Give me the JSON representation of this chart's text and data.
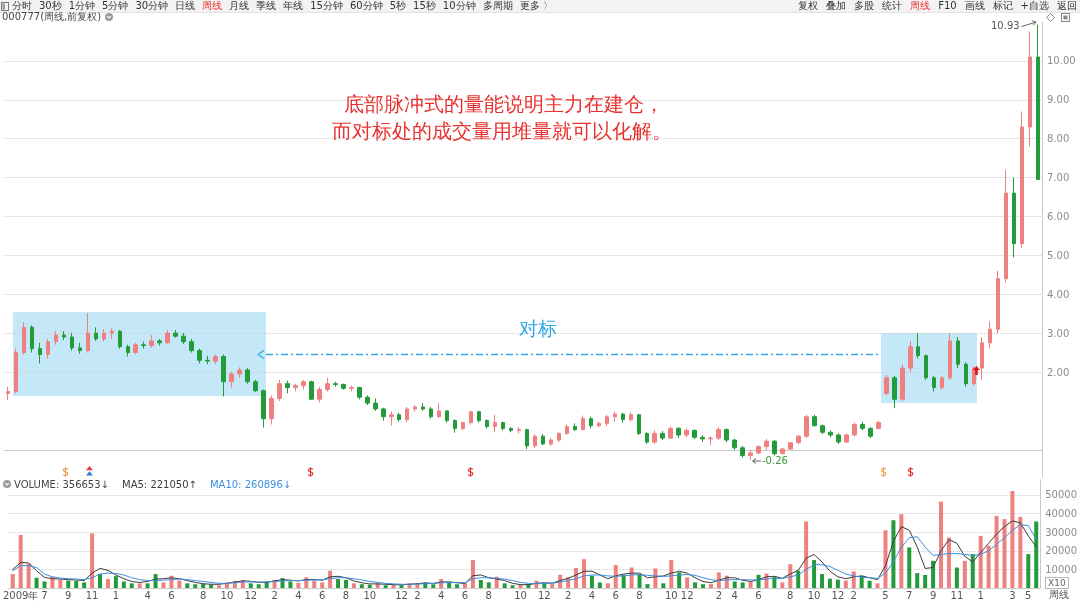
{
  "chart_data": [
    {
      "type": "candlestick",
      "title": "000777(周线,前复权)",
      "categories": [
        null,
        null,
        null,
        null,
        null,
        null,
        null,
        null,
        null,
        null,
        null,
        null,
        null,
        null,
        null,
        null,
        null,
        null,
        null,
        null,
        null,
        null,
        null,
        null,
        null,
        null,
        null,
        null,
        null,
        null,
        null,
        null,
        null,
        null,
        null,
        null,
        null,
        null,
        null,
        null,
        null,
        null,
        null,
        null,
        null,
        null,
        null,
        null,
        null,
        null,
        null,
        null,
        null,
        null,
        null,
        null,
        null,
        null,
        null,
        null,
        null,
        null,
        null,
        null,
        null,
        null,
        null,
        null,
        null,
        null,
        null,
        null,
        null,
        null,
        null,
        null,
        null,
        null,
        null,
        null,
        null,
        null,
        null,
        null,
        null,
        null,
        null,
        null,
        null,
        null,
        null,
        null,
        null,
        null,
        null,
        null,
        null,
        null,
        null,
        null,
        null,
        null,
        null,
        null,
        null,
        null,
        null,
        null,
        null,
        null,
        null,
        null,
        null,
        null,
        null,
        null,
        null,
        null,
        null,
        null,
        null,
        null,
        null,
        null,
        null,
        null,
        null,
        null,
        null,
        null
      ],
      "ohlc": [
        [
          1.45,
          1.62,
          1.28,
          1.5
        ],
        [
          1.5,
          2.6,
          1.45,
          2.5
        ],
        [
          2.5,
          3.28,
          2.45,
          3.15
        ],
        [
          3.15,
          3.2,
          2.5,
          2.6
        ],
        [
          2.6,
          2.75,
          2.22,
          2.45
        ],
        [
          2.45,
          2.85,
          2.35,
          2.78
        ],
        [
          2.78,
          3.05,
          2.7,
          2.95
        ],
        [
          2.95,
          3.05,
          2.82,
          2.9
        ],
        [
          2.9,
          3.0,
          2.55,
          2.62
        ],
        [
          2.62,
          2.75,
          2.47,
          2.55
        ],
        [
          2.55,
          3.51,
          2.5,
          3.0
        ],
        [
          3.0,
          3.15,
          2.8,
          2.85
        ],
        [
          2.85,
          3.1,
          2.78,
          3.0
        ],
        [
          3.0,
          3.12,
          2.85,
          3.05
        ],
        [
          3.05,
          3.08,
          2.6,
          2.65
        ],
        [
          2.65,
          2.7,
          2.4,
          2.5
        ],
        [
          2.5,
          2.75,
          2.45,
          2.7
        ],
        [
          2.7,
          2.78,
          2.6,
          2.68
        ],
        [
          2.68,
          2.95,
          2.62,
          2.8
        ],
        [
          2.8,
          2.85,
          2.68,
          2.75
        ],
        [
          2.75,
          3.08,
          2.72,
          3.0
        ],
        [
          3.0,
          3.08,
          2.88,
          2.92
        ],
        [
          2.92,
          3.0,
          2.72,
          2.78
        ],
        [
          2.78,
          2.85,
          2.5,
          2.55
        ],
        [
          2.55,
          2.6,
          2.22,
          2.3
        ],
        [
          2.3,
          2.42,
          2.2,
          2.28
        ],
        [
          2.28,
          2.45,
          2.2,
          2.4
        ],
        [
          2.4,
          2.45,
          1.37,
          1.75
        ],
        [
          1.75,
          2.0,
          1.6,
          1.95
        ],
        [
          1.95,
          2.12,
          1.85,
          2.05
        ],
        [
          2.05,
          2.1,
          1.7,
          1.75
        ],
        [
          1.75,
          1.8,
          1.48,
          1.52
        ],
        [
          1.52,
          1.55,
          0.57,
          0.8
        ],
        [
          0.8,
          1.4,
          0.65,
          1.32
        ],
        [
          1.32,
          1.8,
          1.25,
          1.7
        ],
        [
          1.7,
          1.78,
          1.45,
          1.6
        ],
        [
          1.6,
          1.7,
          1.5,
          1.65
        ],
        [
          1.65,
          1.8,
          1.55,
          1.75
        ],
        [
          1.75,
          1.78,
          1.28,
          1.3
        ],
        [
          1.3,
          1.62,
          1.22,
          1.55
        ],
        [
          1.55,
          1.85,
          1.5,
          1.7
        ],
        [
          1.7,
          1.75,
          1.62,
          1.68
        ],
        [
          1.68,
          1.7,
          1.55,
          1.58
        ],
        [
          1.58,
          1.65,
          1.5,
          1.6
        ],
        [
          1.6,
          1.62,
          1.3,
          1.35
        ],
        [
          1.35,
          1.4,
          1.15,
          1.2
        ],
        [
          1.2,
          1.32,
          1.0,
          1.05
        ],
        [
          1.05,
          1.08,
          0.75,
          0.85
        ],
        [
          0.85,
          0.98,
          0.62,
          0.9
        ],
        [
          0.9,
          0.95,
          0.72,
          0.78
        ],
        [
          0.78,
          1.1,
          0.7,
          1.05
        ],
        [
          1.05,
          1.15,
          0.98,
          1.1
        ],
        [
          1.1,
          1.2,
          1.0,
          1.05
        ],
        [
          1.05,
          1.1,
          0.8,
          0.85
        ],
        [
          0.85,
          1.2,
          0.82,
          1.0
        ],
        [
          1.0,
          1.02,
          0.7,
          0.75
        ],
        [
          0.75,
          0.78,
          0.44,
          0.55
        ],
        [
          0.55,
          0.72,
          0.5,
          0.7
        ],
        [
          0.7,
          1.0,
          0.65,
          0.98
        ],
        [
          0.98,
          1.0,
          0.7,
          0.75
        ],
        [
          0.75,
          0.78,
          0.55,
          0.6
        ],
        [
          0.6,
          0.9,
          0.45,
          0.7
        ],
        [
          0.7,
          0.72,
          0.5,
          0.55
        ],
        [
          0.55,
          0.58,
          0.45,
          0.5
        ],
        [
          0.5,
          0.58,
          0.42,
          0.52
        ],
        [
          0.52,
          0.54,
          0.02,
          0.1
        ],
        [
          0.1,
          0.4,
          0.05,
          0.35
        ],
        [
          0.35,
          0.4,
          0.12,
          0.15
        ],
        [
          0.15,
          0.3,
          0.1,
          0.25
        ],
        [
          0.25,
          0.45,
          0.2,
          0.42
        ],
        [
          0.42,
          0.65,
          0.38,
          0.6
        ],
        [
          0.6,
          0.68,
          0.48,
          0.52
        ],
        [
          0.52,
          0.88,
          0.5,
          0.8
        ],
        [
          0.8,
          0.85,
          0.55,
          0.62
        ],
        [
          0.62,
          0.72,
          0.58,
          0.68
        ],
        [
          0.68,
          0.9,
          0.6,
          0.85
        ],
        [
          0.85,
          0.98,
          0.72,
          0.92
        ],
        [
          0.92,
          0.95,
          0.7,
          0.78
        ],
        [
          0.78,
          0.96,
          0.72,
          0.9
        ],
        [
          0.9,
          0.92,
          0.38,
          0.42
        ],
        [
          0.42,
          0.45,
          0.15,
          0.2
        ],
        [
          0.2,
          0.5,
          0.15,
          0.42
        ],
        [
          0.42,
          0.48,
          0.25,
          0.3
        ],
        [
          0.3,
          0.6,
          0.28,
          0.55
        ],
        [
          0.55,
          0.58,
          0.3,
          0.38
        ],
        [
          0.38,
          0.55,
          0.32,
          0.5
        ],
        [
          0.5,
          0.52,
          0.28,
          0.32
        ],
        [
          0.32,
          0.38,
          0.2,
          0.28
        ],
        [
          0.28,
          0.35,
          0.12,
          0.3
        ],
        [
          0.3,
          0.58,
          0.25,
          0.52
        ],
        [
          0.52,
          0.55,
          0.2,
          0.25
        ],
        [
          0.25,
          0.28,
          0.0,
          0.05
        ],
        [
          0.05,
          0.1,
          -0.2,
          -0.15
        ],
        [
          -0.15,
          0.0,
          -0.26,
          -0.08
        ],
        [
          -0.08,
          0.12,
          -0.12,
          0.08
        ],
        [
          0.08,
          0.28,
          0.0,
          0.22
        ],
        [
          0.22,
          0.25,
          -0.15,
          -0.1
        ],
        [
          -0.1,
          0.05,
          -0.12,
          0.02
        ],
        [
          0.02,
          0.2,
          0.0,
          0.18
        ],
        [
          0.18,
          0.38,
          0.15,
          0.35
        ],
        [
          0.35,
          0.9,
          0.3,
          0.85
        ],
        [
          0.85,
          0.9,
          0.6,
          0.62
        ],
        [
          0.62,
          0.65,
          0.4,
          0.45
        ],
        [
          0.45,
          0.5,
          0.32,
          0.38
        ],
        [
          0.38,
          0.42,
          0.15,
          0.2
        ],
        [
          0.2,
          0.42,
          0.18,
          0.38
        ],
        [
          0.38,
          0.7,
          0.35,
          0.65
        ],
        [
          0.65,
          0.72,
          0.5,
          0.55
        ],
        [
          0.55,
          0.58,
          0.3,
          0.35
        ],
        [
          0.55,
          0.75,
          0.52,
          0.7
        ],
        [
          1.45,
          1.92,
          1.4,
          1.85
        ],
        [
          1.85,
          1.9,
          1.07,
          1.3
        ],
        [
          1.3,
          2.2,
          1.25,
          2.1
        ],
        [
          2.1,
          2.8,
          2.0,
          2.65
        ],
        [
          2.65,
          3.0,
          2.35,
          2.42
        ],
        [
          2.42,
          2.45,
          1.8,
          1.85
        ],
        [
          1.85,
          1.9,
          1.5,
          1.6
        ],
        [
          1.6,
          1.9,
          1.55,
          1.85
        ],
        [
          1.85,
          3.0,
          1.8,
          2.8
        ],
        [
          2.8,
          2.9,
          2.1,
          2.2
        ],
        [
          2.2,
          2.25,
          1.62,
          1.7
        ],
        [
          1.7,
          2.15,
          1.65,
          2.1
        ],
        [
          2.1,
          2.9,
          1.8,
          2.75
        ],
        [
          2.75,
          3.3,
          2.6,
          3.1
        ],
        [
          3.1,
          4.6,
          3.0,
          4.4
        ],
        [
          4.4,
          7.2,
          4.3,
          6.6
        ],
        [
          6.6,
          7.0,
          4.95,
          5.3
        ],
        [
          5.3,
          8.7,
          5.2,
          8.3
        ],
        [
          8.3,
          10.75,
          7.8,
          10.1
        ],
        [
          10.1,
          10.93,
          6.93,
          6.95
        ]
      ],
      "colors": [
        "#ef8080",
        "#ef8080",
        "#ef8080",
        "#239b3a",
        "#239b3a",
        "#ef8080",
        "#ef8080",
        "#239b3a",
        "#239b3a",
        "#239b3a",
        "#ef8080",
        "#239b3a",
        "#ef8080",
        "#ef8080",
        "#239b3a",
        "#239b3a",
        "#ef8080",
        "#239b3a",
        "#ef8080",
        "#239b3a",
        "#ef8080",
        "#239b3a",
        "#239b3a",
        "#239b3a",
        "#239b3a",
        "#239b3a",
        "#ef8080",
        "#239b3a",
        "#ef8080",
        "#ef8080",
        "#239b3a",
        "#239b3a",
        "#239b3a",
        "#ef8080",
        "#ef8080",
        "#239b3a",
        "#ef8080",
        "#ef8080",
        "#239b3a",
        "#ef8080",
        "#ef8080",
        "#239b3a",
        "#239b3a",
        "#ef8080",
        "#239b3a",
        "#239b3a",
        "#239b3a",
        "#239b3a",
        "#ef8080",
        "#239b3a",
        "#ef8080",
        "#ef8080",
        "#239b3a",
        "#239b3a",
        "#ef8080",
        "#239b3a",
        "#239b3a",
        "#ef8080",
        "#ef8080",
        "#239b3a",
        "#239b3a",
        "#ef8080",
        "#239b3a",
        "#239b3a",
        "#ef8080",
        "#239b3a",
        "#ef8080",
        "#239b3a",
        "#ef8080",
        "#ef8080",
        "#ef8080",
        "#239b3a",
        "#ef8080",
        "#239b3a",
        "#ef8080",
        "#ef8080",
        "#ef8080",
        "#239b3a",
        "#ef8080",
        "#239b3a",
        "#239b3a",
        "#ef8080",
        "#239b3a",
        "#ef8080",
        "#239b3a",
        "#ef8080",
        "#239b3a",
        "#239b3a",
        "#ef8080",
        "#ef8080",
        "#239b3a",
        "#239b3a",
        "#239b3a",
        "#ef8080",
        "#ef8080",
        "#ef8080",
        "#239b3a",
        "#ef8080",
        "#ef8080",
        "#ef8080",
        "#ef8080",
        "#239b3a",
        "#239b3a",
        "#239b3a",
        "#239b3a",
        "#ef8080",
        "#ef8080",
        "#239b3a",
        "#239b3a",
        "#ef8080",
        "#ef8080",
        "#239b3a",
        "#ef8080",
        "#ef8080",
        "#239b3a",
        "#239b3a",
        "#239b3a",
        "#ef8080",
        "#ef8080",
        "#239b3a",
        "#239b3a",
        "#ef8080",
        "#ef8080",
        "#ef8080",
        "#ef8080",
        "#ef8080",
        "#239b3a",
        "#ef8080",
        "#ef8080",
        "#239b3a"
      ],
      "ylim": [
        -0.7,
        11.0
      ],
      "yticks": [
        {
          "value": 2,
          "label": "2.00"
        },
        {
          "value": 3,
          "label": "3.00"
        },
        {
          "value": 4,
          "label": "4.00"
        },
        {
          "value": 5,
          "label": "5.00"
        },
        {
          "value": 6,
          "label": "6.00"
        },
        {
          "value": 7,
          "label": "7.00"
        },
        {
          "value": 8,
          "label": "8.00"
        },
        {
          "value": 9,
          "label": "9.00"
        },
        {
          "value": 10,
          "label": "10.00"
        }
      ],
      "grid": "y",
      "tick_labels": "y",
      "annotations": [
        "分时",
        "30秒",
        "1分钟",
        "5分钟",
        "30分钟",
        "日线",
        "周线",
        "月线",
        "季线",
        "年线",
        "15分钟",
        "60分钟",
        "5秒",
        "15秒",
        "10分钟",
        "多周期",
        "更多 〉",
        "复权",
        "叠加",
        "多股",
        "统计",
        "周线",
        "F10",
        "画线",
        "标记",
        "+自选",
        "返回",
        "底部脉冲式的量能说明主力在建仓，",
        "而对标处的成交量用堆量就可以化解。",
        "对标",
        "10.93",
        "-0.26"
      ]
    },
    {
      "type": "bar",
      "categories": [
        null,
        "2009年",
        null,
        null,
        "7",
        null,
        null,
        "9",
        null,
        null,
        "11",
        null,
        null,
        "1",
        null,
        null,
        null,
        "4",
        null,
        null,
        "6",
        null,
        null,
        null,
        "8",
        null,
        null,
        "10",
        null,
        null,
        "12",
        null,
        null,
        "2",
        null,
        null,
        "4",
        null,
        null,
        "6",
        null,
        null,
        "8",
        null,
        null,
        "10",
        null,
        null,
        null,
        "12",
        null,
        "2",
        null,
        null,
        "4",
        null,
        null,
        "6",
        null,
        null,
        "8",
        null,
        null,
        null,
        "10",
        null,
        null,
        "12",
        null,
        null,
        "2",
        null,
        null,
        "4",
        null,
        null,
        "6",
        null,
        null,
        "8",
        null,
        null,
        null,
        "10",
        null,
        "12",
        null,
        null,
        null,
        "2",
        null,
        "4",
        null,
        null,
        "6",
        null,
        null,
        null,
        "8",
        null,
        null,
        "10",
        null,
        null,
        "12",
        null,
        "2",
        null,
        null,
        null,
        "5",
        null,
        null,
        "7",
        null,
        null,
        "9",
        null,
        null,
        "11",
        null,
        null,
        "1",
        null,
        null,
        null,
        "3",
        null,
        "5",
        null
      ],
      "series": [
        {
          "values": [
            7500,
            28500,
            13000,
            5500,
            3500,
            6000,
            4500,
            4000,
            3800,
            3000,
            29300,
            7500,
            4800,
            6400,
            3500,
            2500,
            2500,
            2500,
            7500,
            3000,
            6600,
            4000,
            2500,
            2000,
            2200,
            1800,
            1500,
            3000,
            3900,
            4300,
            2500,
            2000,
            3500,
            4300,
            5300,
            3500,
            2800,
            5700,
            4000,
            3000,
            9300,
            4800,
            4300,
            2500,
            2000,
            1800,
            2500,
            1500,
            1800,
            1500,
            2500,
            2500,
            3000,
            2000,
            4800,
            2900,
            2000,
            2500,
            15000,
            4300,
            3000,
            6100,
            2500,
            1500,
            1800,
            2000,
            3900,
            2500,
            2100,
            7100,
            5700,
            10700,
            15500,
            6600,
            3000,
            2500,
            12300,
            7100,
            11000,
            7500,
            2100,
            10500,
            2500,
            15000,
            8400,
            5700,
            3000,
            2000,
            2100,
            8400,
            6600,
            3500,
            3000,
            3200,
            7100,
            7800,
            6100,
            3000,
            12800,
            9300,
            35700,
            15000,
            7500,
            5000,
            4500,
            4000,
            8900,
            6600,
            3900,
            2500,
            31000,
            36400,
            39600,
            21800,
            8000,
            7000,
            14600,
            46400,
            27100,
            11000,
            14600,
            18200,
            28000,
            22700,
            38700,
            37000,
            52100,
            38200,
            18200,
            35700
          ],
          "colors": [
            "#ef8080",
            "#ef8080",
            "#ef8080",
            "#239b3a",
            "#239b3a",
            "#ef8080",
            "#ef8080",
            "#239b3a",
            "#239b3a",
            "#239b3a",
            "#ef8080",
            "#239b3a",
            "#ef8080",
            "#239b3a",
            "#239b3a",
            "#239b3a",
            "#ef8080",
            "#239b3a",
            "#239b3a",
            "#ef8080",
            "#ef8080",
            "#ef8080",
            "#239b3a",
            "#239b3a",
            "#239b3a",
            "#239b3a",
            "#ef8080",
            "#ef8080",
            "#ef8080",
            "#ef8080",
            "#239b3a",
            "#239b3a",
            "#239b3a",
            "#ef8080",
            "#239b3a",
            "#239b3a",
            "#ef8080",
            "#ef8080",
            "#ef8080",
            "#ef8080",
            "#ef8080",
            "#239b3a",
            "#239b3a",
            "#ef8080",
            "#239b3a",
            "#239b3a",
            "#ef8080",
            "#239b3a",
            "#ef8080",
            "#239b3a",
            "#ef8080",
            "#ef8080",
            "#239b3a",
            "#239b3a",
            "#ef8080",
            "#239b3a",
            "#239b3a",
            "#ef8080",
            "#ef8080",
            "#239b3a",
            "#239b3a",
            "#ef8080",
            "#239b3a",
            "#239b3a",
            "#ef8080",
            "#239b3a",
            "#ef8080",
            "#239b3a",
            "#ef8080",
            "#ef8080",
            "#ef8080",
            "#ef8080",
            "#ef8080",
            "#239b3a",
            "#239b3a",
            "#ef8080",
            "#ef8080",
            "#239b3a",
            "#ef8080",
            "#239b3a",
            "#239b3a",
            "#ef8080",
            "#239b3a",
            "#ef8080",
            "#239b3a",
            "#ef8080",
            "#239b3a",
            "#239b3a",
            "#ef8080",
            "#ef8080",
            "#ef8080",
            "#239b3a",
            "#239b3a",
            "#ef8080",
            "#239b3a",
            "#ef8080",
            "#239b3a",
            "#ef8080",
            "#ef8080",
            "#239b3a",
            "#ef8080",
            "#239b3a",
            "#239b3a",
            "#239b3a",
            "#239b3a",
            "#ef8080",
            "#ef8080",
            "#239b3a",
            "#239b3a",
            "#ef8080",
            "#ef8080",
            "#239b3a",
            "#ef8080",
            "#239b3a",
            "#239b3a",
            "#239b3a",
            "#239b3a",
            "#ef8080",
            "#ef8080",
            "#239b3a",
            "#ef8080",
            "#239b3a",
            "#ef8080",
            "#ef8080",
            "#ef8080",
            "#ef8080",
            "#ef8080",
            "#ef8080",
            "#239b3a",
            "#239b3a"
          ]
        },
        {
          "type": "line",
          "name": "MA5: 221050↑",
          "color": "#3c3c3c",
          "values": [
            10000,
            13700,
            13500,
            9300,
            5700,
            5000,
            4800,
            4500,
            4300,
            4000,
            8000,
            10500,
            9500,
            7000,
            5000,
            3500,
            3000,
            3500,
            4800,
            5000,
            5500,
            5000,
            4000,
            3000,
            2300,
            2000,
            2000,
            2500,
            3200,
            3800,
            3600,
            3000,
            3000,
            3800,
            4500,
            4200,
            3800,
            4500,
            4600,
            4200,
            6000,
            6300,
            5500,
            3800,
            2800,
            2200,
            2200,
            2000,
            1800,
            1700,
            2000,
            2300,
            2700,
            2500,
            3200,
            3300,
            2800,
            2400,
            6600,
            7000,
            5500,
            4800,
            4000,
            2500,
            1800,
            1800,
            2500,
            2800,
            2600,
            4000,
            5200,
            7000,
            9000,
            9000,
            7000,
            5000,
            6500,
            7500,
            8000,
            8000,
            5500,
            6000,
            6500,
            8000,
            9000,
            8000,
            5500,
            3500,
            2800,
            4200,
            5500,
            5500,
            4200,
            3500,
            4500,
            6000,
            6300,
            5200,
            7500,
            9500,
            16000,
            18000,
            14000,
            9000,
            6000,
            5000,
            6000,
            6500,
            5500,
            4500,
            12000,
            25000,
            33000,
            31000,
            22000,
            10500,
            11000,
            20000,
            26000,
            24000,
            17000,
            14000,
            19000,
            24000,
            29000,
            33000,
            36000,
            35000,
            28000,
            22100
          ]
        },
        {
          "type": "line",
          "name": "MA10: 260896↓",
          "color": "#3b8fe0",
          "values": [
            9300,
            12000,
            12000,
            11000,
            7500,
            6000,
            5300,
            5000,
            4800,
            4500,
            5500,
            7500,
            8000,
            7800,
            7000,
            5500,
            4500,
            4000,
            4000,
            4200,
            4500,
            4800,
            4500,
            4000,
            3500,
            3000,
            2500,
            2500,
            2800,
            3200,
            3300,
            3200,
            3200,
            3500,
            3800,
            4000,
            4000,
            4200,
            4300,
            4400,
            5000,
            5500,
            5500,
            5000,
            4300,
            3500,
            3000,
            2500,
            2200,
            2000,
            2000,
            2100,
            2300,
            2400,
            2800,
            3000,
            3000,
            2800,
            5000,
            5500,
            5500,
            5200,
            4800,
            4000,
            3000,
            2500,
            2300,
            2400,
            2500,
            3200,
            4000,
            5000,
            6500,
            7000,
            7000,
            6500,
            6300,
            6500,
            7000,
            7200,
            6800,
            6500,
            6200,
            6500,
            7000,
            7200,
            6800,
            5500,
            4500,
            4000,
            4300,
            4500,
            4500,
            4300,
            4300,
            4800,
            5200,
            5200,
            6000,
            7000,
            10000,
            12500,
            12500,
            11500,
            9500,
            7500,
            6500,
            5800,
            5500,
            5200,
            8000,
            14000,
            22000,
            27000,
            27500,
            22000,
            17500,
            18000,
            18500,
            18500,
            18000,
            17500,
            18000,
            20000,
            23500,
            27000,
            31000,
            34000,
            33500,
            26100
          ]
        }
      ],
      "ylim": [
        0,
        58000
      ],
      "yticks": [
        10000,
        20000,
        30000,
        40000,
        50000
      ],
      "ylabel": "X10",
      "xlabel": "周线",
      "grid": "y",
      "legend": "top left",
      "marker": "none",
      "annotations": [
        "VOLUME: 356653↓"
      ]
    }
  ]
}
